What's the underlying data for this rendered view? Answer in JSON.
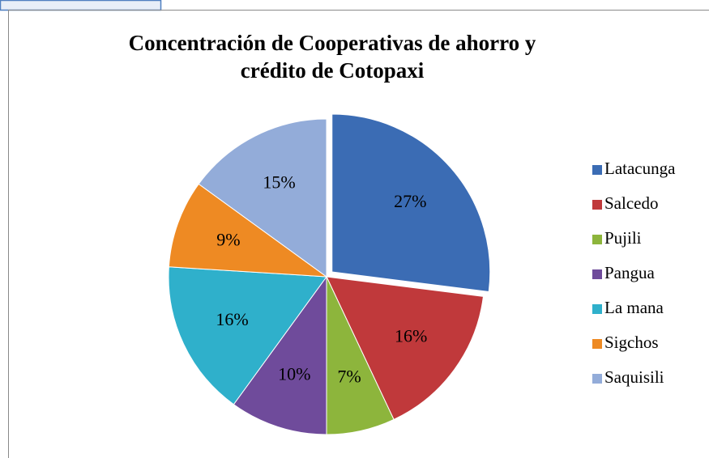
{
  "chart_data": {
    "type": "pie",
    "title": "Concentración de Cooperativas de ahorro y crédito de Cotopaxi",
    "categories": [
      "Latacunga",
      "Salcedo",
      "Pujili",
      "Pangua",
      "La mana",
      "Sigchos",
      "Saquisili"
    ],
    "values": [
      27,
      16,
      7,
      10,
      16,
      9,
      15
    ],
    "value_labels": [
      "27%",
      "16%",
      "7%",
      "10%",
      "16%",
      "9%",
      "15%"
    ],
    "colors": [
      "#3b6cb4",
      "#c0393b",
      "#8db53c",
      "#6f4b9b",
      "#2fb0cb",
      "#ee8a23",
      "#93acd9"
    ],
    "legend": "right"
  }
}
